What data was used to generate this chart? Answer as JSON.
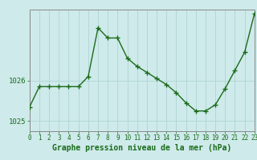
{
  "x": [
    0,
    1,
    2,
    3,
    4,
    5,
    6,
    7,
    8,
    9,
    10,
    11,
    12,
    13,
    14,
    15,
    16,
    17,
    18,
    19,
    20,
    21,
    22,
    23
  ],
  "y": [
    1025.35,
    1025.85,
    1025.85,
    1025.85,
    1025.85,
    1025.85,
    1026.1,
    1027.3,
    1027.05,
    1027.05,
    1026.55,
    1026.35,
    1026.2,
    1026.05,
    1025.9,
    1025.7,
    1025.45,
    1025.25,
    1025.25,
    1025.4,
    1025.8,
    1026.25,
    1026.7,
    1027.65
  ],
  "line_color": "#1a6b1a",
  "marker": "+",
  "marker_size": 4,
  "marker_linewidth": 1.0,
  "bg_color": "#ceeaea",
  "grid_color": "#b0d4d4",
  "xlabel": "Graphe pression niveau de la mer (hPa)",
  "xlabel_color": "#1a6b1a",
  "tick_label_color": "#1a6b1a",
  "ytick_labels": [
    "1025",
    "1026"
  ],
  "ytick_values": [
    1025.0,
    1026.0
  ],
  "ylim": [
    1024.75,
    1027.75
  ],
  "xlim": [
    0,
    23
  ],
  "spine_color": "#888888",
  "xtick_fontsize": 5.5,
  "ytick_fontsize": 6.5,
  "xlabel_fontsize": 7.0,
  "linewidth": 1.0
}
